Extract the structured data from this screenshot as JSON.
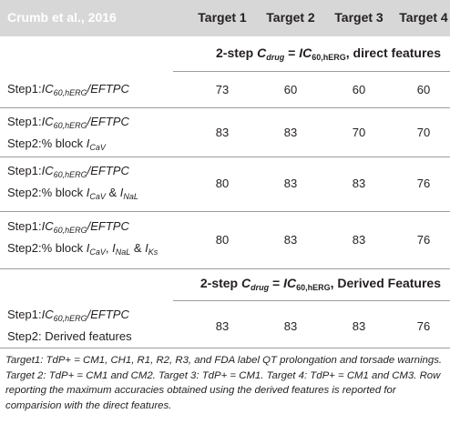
{
  "header": {
    "source": "Crumb et al., 2016",
    "targets": [
      "Target 1",
      "Target 2",
      "Target 3",
      "Target 4"
    ]
  },
  "sections": [
    {
      "title_prefix": "2-step ",
      "title_cdrug": "C",
      "title_cdrug_sub": "drug",
      "title_mid": " = ",
      "title_ic": "IC",
      "title_ic_sub": "60,hERG",
      "title_suffix": ", direct features"
    },
    {
      "title_prefix": "2-step ",
      "title_cdrug": "C",
      "title_cdrug_sub": "drug",
      "title_mid": " = ",
      "title_ic": "IC",
      "title_ic_sub": "60,hERG",
      "title_suffix": ", Derived Features"
    }
  ],
  "rows": [
    {
      "step1_prefix": "Step1:",
      "step1_ic": "IC",
      "step1_sub": "60,hERG",
      "step1_suffix": "/EFTPC",
      "step2": "",
      "values": [
        "73",
        "60",
        "60",
        "60"
      ]
    },
    {
      "step1_prefix": "Step1:",
      "step1_ic": "IC",
      "step1_sub": "60,hERG",
      "step1_suffix": "/EFTPC",
      "step2_prefix": "Step2:% block ",
      "step2_i1": "I",
      "step2_i1_sub": "CaV",
      "values": [
        "83",
        "83",
        "70",
        "70"
      ]
    },
    {
      "step1_prefix": "Step1:",
      "step1_ic": "IC",
      "step1_sub": "60,hERG",
      "step1_suffix": "/EFTPC",
      "step2_prefix": "Step2:% block ",
      "step2_i1": "I",
      "step2_i1_sub": "CaV",
      "step2_amp": " & ",
      "step2_i2": "I",
      "step2_i2_sub": "NaL",
      "values": [
        "80",
        "83",
        "83",
        "76"
      ]
    },
    {
      "step1_prefix": "Step1:",
      "step1_ic": "IC",
      "step1_sub": "60,hERG",
      "step1_suffix": "/EFTPC",
      "step2_prefix": "Step2:% block ",
      "step2_i1": "I",
      "step2_i1_sub": "CaV",
      "step2_comma": ", ",
      "step2_i2": "I",
      "step2_i2_sub": "NaL",
      "step2_amp": " & ",
      "step2_i3": "I",
      "step2_i3_sub": "Ks",
      "values": [
        "80",
        "83",
        "83",
        "76"
      ]
    },
    {
      "step1_prefix": "Step1:",
      "step1_ic": "IC",
      "step1_sub": "60,hERG",
      "step1_suffix": "/EFTPC",
      "step2_text": "Step2: Derived features",
      "values": [
        "83",
        "83",
        "83",
        "76"
      ]
    }
  ],
  "footnote": "Target1: TdP+ = CM1, CH1, R1, R2, R3, and FDA label QT prolongation and torsade warnings. Target 2: TdP+ = CM1 and CM2. Target 3: TdP+ = CM1. Target 4: TdP+ = CM1 and CM3. Row reporting the maximum accuracies obtained using the derived features is reported for comparision with the direct features."
}
